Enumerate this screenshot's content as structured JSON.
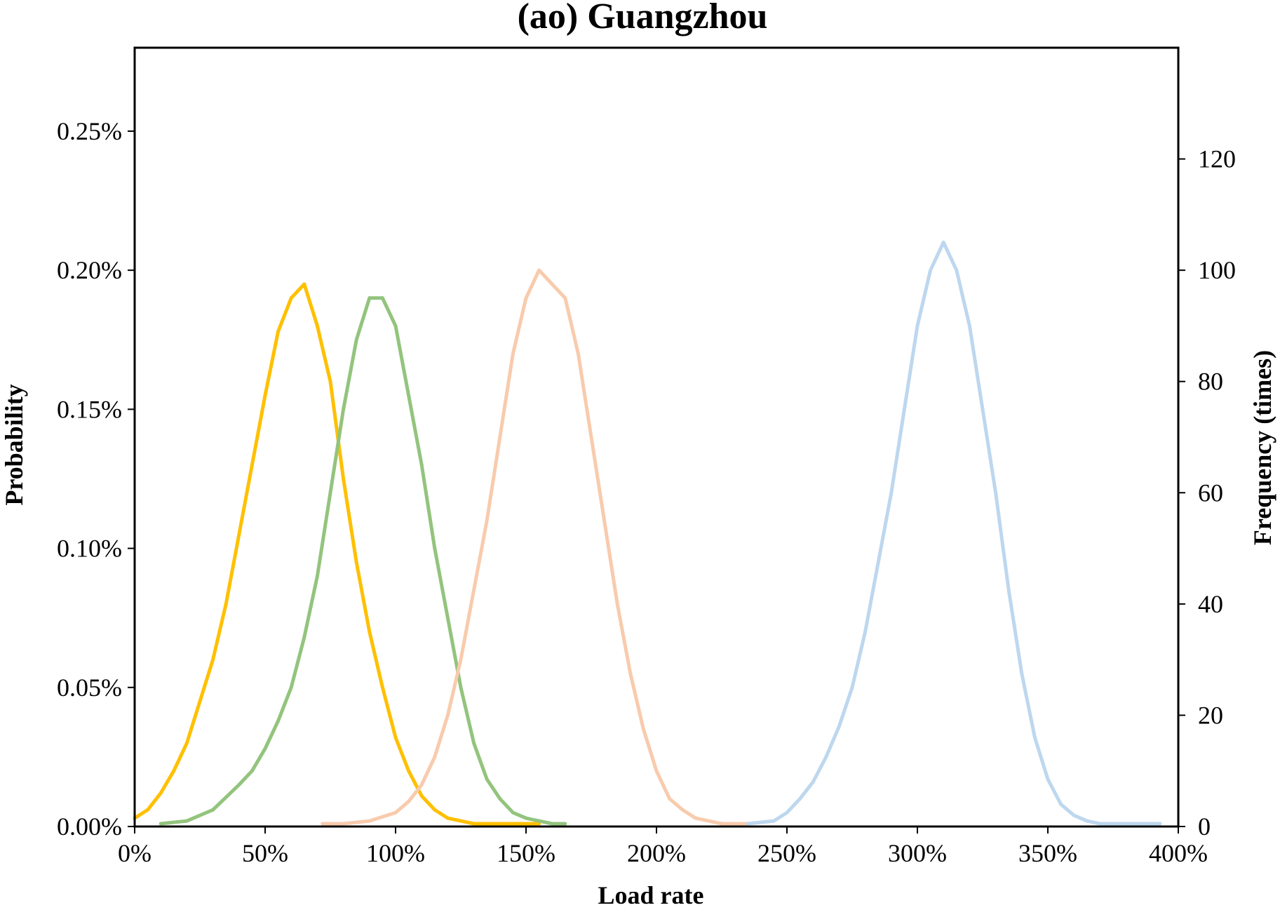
{
  "chart_data": {
    "type": "line",
    "title": "(ao) Guangzhou",
    "xlabel": "Load rate",
    "ylabel": "Probability",
    "y2label": "Frequency (times)",
    "xlim": [
      0,
      400
    ],
    "ylim": [
      0,
      0.0028
    ],
    "y2lim": [
      0,
      140
    ],
    "xticks": [
      0,
      50,
      100,
      150,
      200,
      250,
      300,
      350,
      400
    ],
    "xtick_labels": [
      "0%",
      "50%",
      "100%",
      "150%",
      "200%",
      "250%",
      "300%",
      "350%",
      "400%"
    ],
    "yticks": [
      0,
      0.0005,
      0.001,
      0.0015,
      0.002,
      0.0025
    ],
    "ytick_labels": [
      "0.00%",
      "0.05%",
      "0.10%",
      "0.15%",
      "0.20%",
      "0.25%"
    ],
    "y2ticks": [
      0,
      20,
      40,
      60,
      80,
      100,
      120
    ],
    "y2tick_labels": [
      "0",
      "20",
      "40",
      "60",
      "80",
      "100",
      "120"
    ],
    "grid": false,
    "legend": "none",
    "series": [
      {
        "color": "#FFC000",
        "x": [
          0,
          5,
          10,
          15,
          20,
          25,
          30,
          35,
          40,
          45,
          50,
          55,
          60,
          65,
          70,
          75,
          80,
          85,
          90,
          95,
          100,
          105,
          110,
          115,
          120,
          125,
          130,
          135,
          140,
          145,
          150,
          155
        ],
        "y": [
          3e-05,
          6e-05,
          0.00012,
          0.0002,
          0.0003,
          0.00045,
          0.0006,
          0.0008,
          0.00105,
          0.0013,
          0.00155,
          0.00178,
          0.0019,
          0.00195,
          0.0018,
          0.0016,
          0.00125,
          0.00095,
          0.0007,
          0.0005,
          0.00032,
          0.0002,
          0.00011,
          6e-05,
          3e-05,
          2e-05,
          1e-05,
          1e-05,
          1e-05,
          1e-05,
          1e-05,
          1e-05
        ]
      },
      {
        "color": "#93C47D",
        "x": [
          10,
          20,
          30,
          40,
          45,
          50,
          55,
          60,
          65,
          70,
          75,
          80,
          85,
          90,
          95,
          100,
          105,
          110,
          115,
          120,
          125,
          130,
          135,
          140,
          145,
          150,
          155,
          160,
          165
        ],
        "y": [
          1e-05,
          2e-05,
          6e-05,
          0.00015,
          0.0002,
          0.00028,
          0.00038,
          0.0005,
          0.00068,
          0.0009,
          0.0012,
          0.0015,
          0.00175,
          0.0019,
          0.0019,
          0.0018,
          0.00155,
          0.0013,
          0.001,
          0.00075,
          0.0005,
          0.0003,
          0.00017,
          0.0001,
          5e-05,
          3e-05,
          2e-05,
          1e-05,
          1e-05
        ]
      },
      {
        "color": "#F8CBAD",
        "x": [
          72,
          80,
          90,
          100,
          105,
          110,
          115,
          120,
          125,
          130,
          135,
          140,
          145,
          150,
          155,
          160,
          165,
          170,
          175,
          180,
          185,
          190,
          195,
          200,
          205,
          210,
          215,
          220,
          225,
          230,
          235
        ],
        "y": [
          1e-05,
          1e-05,
          2e-05,
          5e-05,
          9e-05,
          0.00015,
          0.00025,
          0.0004,
          0.0006,
          0.00085,
          0.0011,
          0.0014,
          0.0017,
          0.0019,
          0.002,
          0.00195,
          0.0019,
          0.0017,
          0.0014,
          0.0011,
          0.0008,
          0.00055,
          0.00035,
          0.0002,
          0.0001,
          6e-05,
          3e-05,
          2e-05,
          1e-05,
          1e-05,
          1e-05
        ]
      },
      {
        "color": "#BDD7EE",
        "x": [
          235,
          245,
          250,
          255,
          260,
          265,
          270,
          275,
          280,
          285,
          290,
          295,
          300,
          305,
          310,
          315,
          320,
          325,
          330,
          335,
          340,
          345,
          350,
          355,
          360,
          365,
          370,
          375,
          380,
          393
        ],
        "y": [
          1e-05,
          2e-05,
          5e-05,
          0.0001,
          0.00016,
          0.00025,
          0.00036,
          0.0005,
          0.0007,
          0.00095,
          0.0012,
          0.0015,
          0.0018,
          0.002,
          0.0021,
          0.002,
          0.0018,
          0.0015,
          0.0012,
          0.00085,
          0.00055,
          0.00032,
          0.00017,
          8e-05,
          4e-05,
          2e-05,
          1e-05,
          1e-05,
          1e-05,
          1e-05
        ]
      }
    ]
  }
}
